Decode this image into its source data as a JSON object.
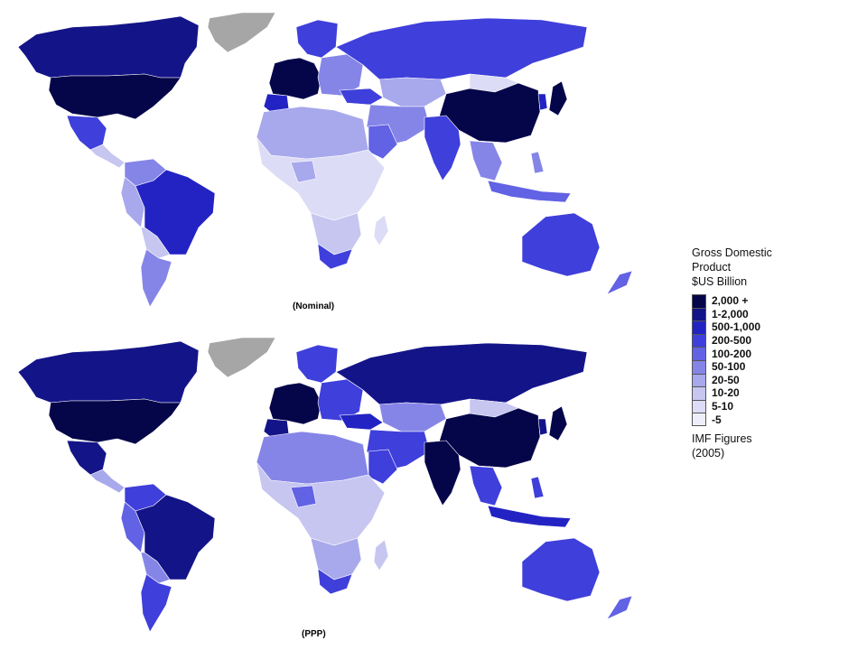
{
  "legend": {
    "title_lines": [
      "Gross Domestic",
      "Product",
      "$US Billion"
    ],
    "classes": [
      {
        "label": "2,000 +",
        "color": "#05054a"
      },
      {
        "label": "1-2,000",
        "color": "#141489"
      },
      {
        "label": "500-1,000",
        "color": "#2323c4"
      },
      {
        "label": "200-500",
        "color": "#3f3fdb"
      },
      {
        "label": "100-200",
        "color": "#6262e4"
      },
      {
        "label": "50-100",
        "color": "#8585e8"
      },
      {
        "label": "20-50",
        "color": "#a8a8ec"
      },
      {
        "label": "10-20",
        "color": "#c6c6f1"
      },
      {
        "label": "5-10",
        "color": "#dcdcf6"
      },
      {
        "label": "-5",
        "color": "#eeeefb"
      }
    ],
    "source_lines": [
      "IMF Figures",
      "(2005)"
    ]
  },
  "maps": {
    "nominal": {
      "caption": "(Nominal)"
    },
    "ppp": {
      "caption": "(PPP)"
    }
  },
  "no_data_color": "#a6a6a6"
}
